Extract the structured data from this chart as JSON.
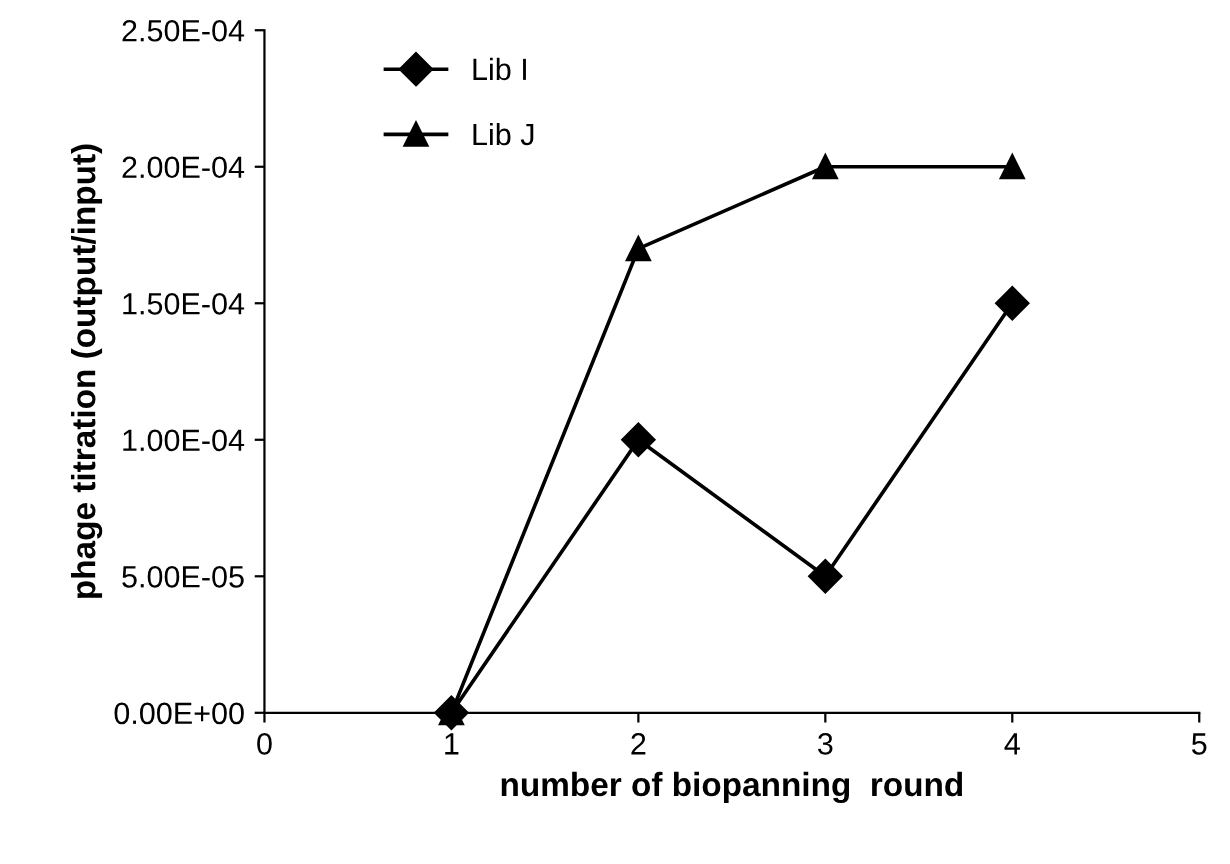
{
  "chart_data": {
    "type": "line",
    "xlabel": "number of biopanning  round",
    "ylabel": "phage titration (output/input)",
    "x": [
      1,
      2,
      3,
      4
    ],
    "series": [
      {
        "name": "Lib I",
        "color": "#000000",
        "marker": "diamond",
        "values": [
          0,
          0.0001,
          5e-05,
          0.00015
        ]
      },
      {
        "name": "Lib J",
        "color": "#000000",
        "marker": "triangle",
        "values": [
          0,
          0.00017,
          0.0002,
          0.0002
        ]
      }
    ],
    "xlim": [
      0,
      5
    ],
    "xticks": [
      0,
      1,
      2,
      3,
      4,
      5
    ],
    "ylim": [
      0,
      0.00025
    ],
    "yticks": [
      {
        "value": 0,
        "label": "0.00E+00"
      },
      {
        "value": 5e-05,
        "label": "5.00E-05"
      },
      {
        "value": 0.0001,
        "label": "1.00E-04"
      },
      {
        "value": 0.00015,
        "label": "1.50E-04"
      },
      {
        "value": 0.0002,
        "label": "2.00E-04"
      },
      {
        "value": 0.00025,
        "label": "2.50E-04"
      }
    ],
    "grid": false,
    "legend": "top left",
    "line_style": "solid"
  }
}
